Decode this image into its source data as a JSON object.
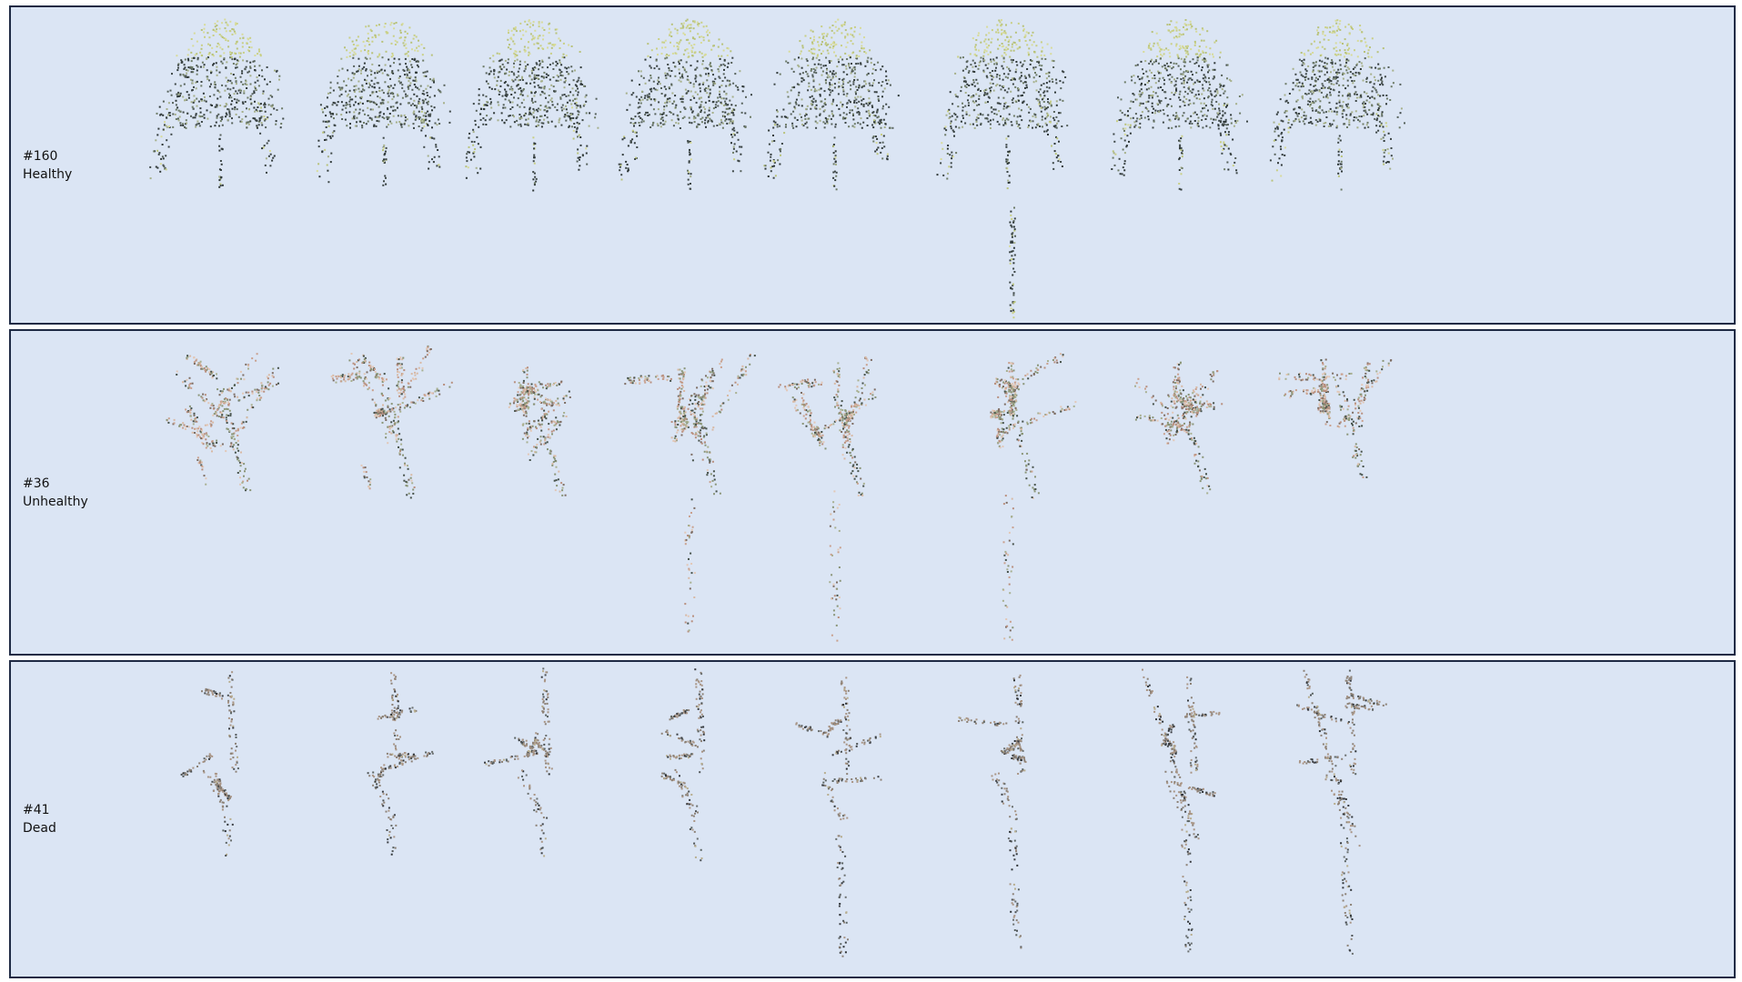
{
  "panels": [
    {
      "id": "160",
      "id_text": "#160",
      "status": "Healthy",
      "views": 8,
      "palette": [
        "#d7db9a",
        "#c9cf85",
        "#b8c27a",
        "#3d4646",
        "#2f3838",
        "#6d7b66",
        "#a6b08a",
        "#55605a"
      ],
      "shape": "healthy"
    },
    {
      "id": "36",
      "id_text": "#36",
      "status": "Unhealthy",
      "views": 8,
      "palette": [
        "#d8b9a4",
        "#c9a08d",
        "#b88f7e",
        "#8a9577",
        "#46514a",
        "#a8b090",
        "#7d6d63",
        "#e2c7b6"
      ],
      "shape": "unhealthy"
    },
    {
      "id": "41",
      "id_text": "#41",
      "status": "Dead",
      "views": 8,
      "palette": [
        "#3a3d42",
        "#2e3236",
        "#6a6f6f",
        "#8c8176",
        "#a99585",
        "#5b6463",
        "#b7ad8e",
        "#4c5153"
      ],
      "shape": "dead"
    }
  ]
}
